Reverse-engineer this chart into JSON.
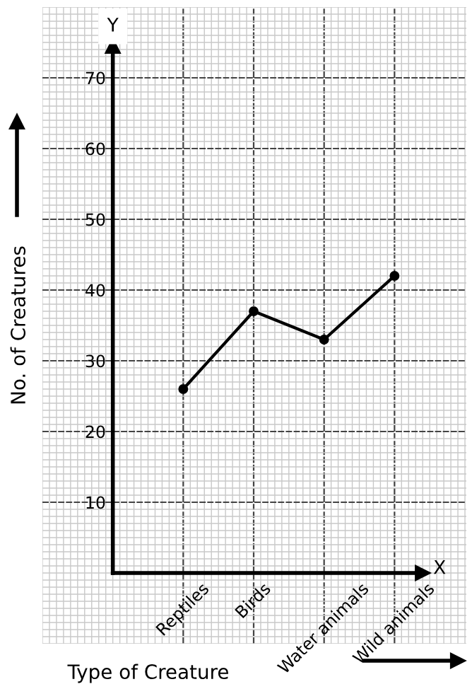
{
  "chart_data": {
    "type": "line",
    "categories": [
      "Reptiles",
      "Birds",
      "Water animals",
      "Wild animals"
    ],
    "series": [
      {
        "color": "#000000",
        "values": [
          26,
          37,
          33,
          42
        ]
      }
    ],
    "xlabel": "Type of Creature",
    "ylabel": "No. of Creatures",
    "ylim": [
      -10,
      80
    ],
    "yticks": [
      10,
      20,
      30,
      40,
      50,
      60,
      70
    ],
    "annotations": [
      "Y",
      "X"
    ],
    "grid": true,
    "marker": "circle",
    "line_style": "solid"
  }
}
